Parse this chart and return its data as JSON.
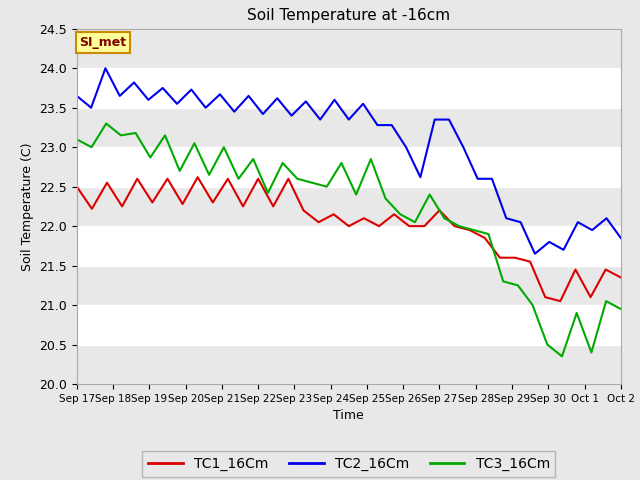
{
  "title": "Soil Temperature at -16cm",
  "xlabel": "Time",
  "ylabel": "Soil Temperature (C)",
  "ylim": [
    20.0,
    24.5
  ],
  "yticks": [
    20.0,
    20.5,
    21.0,
    21.5,
    22.0,
    22.5,
    23.0,
    23.5,
    24.0,
    24.5
  ],
  "fig_bg_color": "#e8e8e8",
  "plot_bg": "#ffffff",
  "grid_color": "#dddddd",
  "annotation_text": "SI_met",
  "annotation_bg": "#ffff99",
  "annotation_border": "#cc8800",
  "annotation_text_color": "#800000",
  "legend": [
    "TC1_16Cm",
    "TC2_16Cm",
    "TC3_16Cm"
  ],
  "line_colors": [
    "#dd0000",
    "#0000ee",
    "#00aa00"
  ],
  "line_width": 1.5,
  "xtick_labels": [
    "Sep 17",
    "Sep 18",
    "Sep 19",
    "Sep 20",
    "Sep 21",
    "Sep 22",
    "Sep 23",
    "Sep 24",
    "Sep 25",
    "Sep 26",
    "Sep 27",
    "Sep 28",
    "Sep 29",
    "Sep 30",
    "Oct 1",
    "Oct 2"
  ],
  "tc1": [
    22.5,
    22.22,
    22.55,
    22.25,
    22.6,
    22.3,
    22.6,
    22.28,
    22.62,
    22.3,
    22.6,
    22.25,
    22.6,
    22.25,
    22.6,
    22.2,
    22.05,
    22.15,
    22.0,
    22.1,
    22.0,
    22.15,
    22.0,
    22.0,
    22.2,
    22.0,
    21.95,
    21.85,
    21.6,
    21.6,
    21.55,
    21.1,
    21.05,
    21.45,
    21.1,
    21.45,
    21.35
  ],
  "tc2": [
    23.65,
    23.5,
    24.0,
    23.65,
    23.82,
    23.6,
    23.75,
    23.55,
    23.73,
    23.5,
    23.67,
    23.45,
    23.65,
    23.42,
    23.62,
    23.4,
    23.58,
    23.35,
    23.6,
    23.35,
    23.55,
    23.28,
    23.28,
    23.0,
    22.62,
    23.35,
    23.35,
    23.0,
    22.6,
    22.6,
    22.1,
    22.05,
    21.65,
    21.8,
    21.7,
    22.05,
    21.95,
    22.1,
    21.85
  ],
  "tc3": [
    23.1,
    23.0,
    23.3,
    23.15,
    23.18,
    22.87,
    23.15,
    22.7,
    23.05,
    22.65,
    23.0,
    22.6,
    22.85,
    22.42,
    22.8,
    22.6,
    22.55,
    22.5,
    22.8,
    22.4,
    22.85,
    22.35,
    22.15,
    22.05,
    22.4,
    22.1,
    22.0,
    21.95,
    21.9,
    21.3,
    21.25,
    21.0,
    20.5,
    20.35,
    20.9,
    20.4,
    21.05,
    20.95
  ]
}
